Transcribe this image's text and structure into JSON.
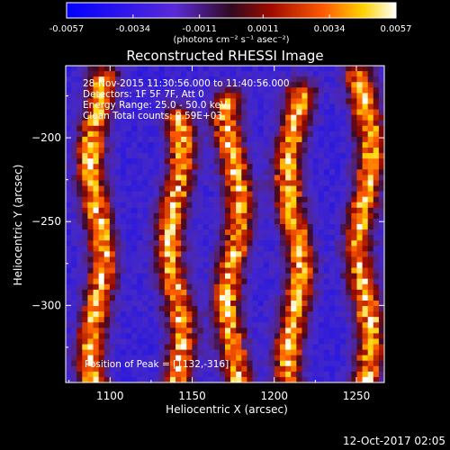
{
  "colorbar": {
    "tick_labels": [
      "-0.0057",
      "-0.0034",
      "-0.0011",
      "0.0011",
      "0.0034",
      "0.0057"
    ],
    "tick_values": [
      -0.0057,
      -0.0034,
      -0.0011,
      0.0011,
      0.0034,
      0.0057
    ],
    "range": [
      -0.0057,
      0.0057
    ],
    "units_label": "(photons cm⁻² s⁻¹ asec⁻²)"
  },
  "chart_data": {
    "type": "heatmap",
    "title": "Reconstructed RHESSI Image",
    "xlabel": "Heliocentric X (arcsec)",
    "ylabel": "Heliocentric Y (arcsec)",
    "xlim": [
      1073,
      1267
    ],
    "ylim": [
      -346,
      -157
    ],
    "x_ticks": [
      1100,
      1150,
      1200,
      1250
    ],
    "y_ticks": [
      -300,
      -250,
      -200
    ],
    "x_tick_labels": [
      "1100",
      "1150",
      "1200",
      "1250"
    ],
    "y_tick_labels": [
      "−300",
      "−250",
      "−200"
    ],
    "value_range": [
      -0.0057,
      0.0057
    ],
    "colormap": "blue-purple-red-yellow-white",
    "peak": [
      1132,
      -316
    ],
    "annotations": [
      "28-Nov-2015 11:30:56.000 to 11:40:56.000",
      "Detectors: 1F 5F 7F, Att 0",
      "Energy Range: 25.0 - 50.0 keV",
      "Clean    Total counts: 9.59E+03"
    ],
    "peak_label": "Position of Peak = [1132,-316]",
    "bright_ridges": [
      {
        "x_center": 1092,
        "y_span": [
          -346,
          -165
        ]
      },
      {
        "x_center": 1140,
        "y_span": [
          -346,
          -190
        ]
      },
      {
        "x_center": 1175,
        "y_span": [
          -346,
          -180
        ]
      },
      {
        "x_center": 1212,
        "y_span": [
          -346,
          -175
        ]
      },
      {
        "x_center": 1255,
        "y_span": [
          -346,
          -165
        ]
      }
    ]
  },
  "footer": {
    "timestamp": "12-Oct-2017 02:05"
  },
  "colors": {
    "background": "#000000",
    "foreground": "#ffffff"
  }
}
